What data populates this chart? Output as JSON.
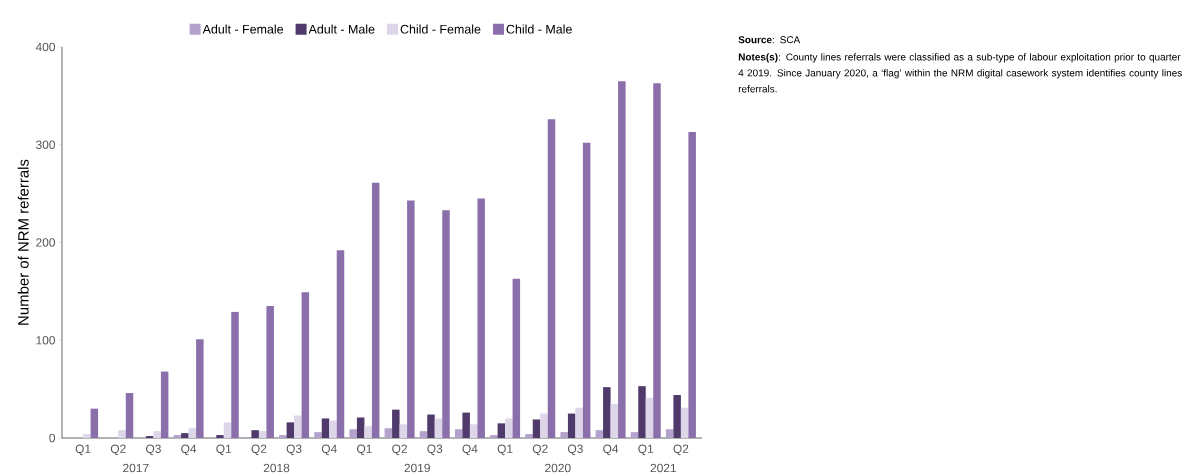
{
  "chart_data": {
    "type": "bar",
    "ylabel": "Number of NRM referrals",
    "categories": [
      "Q1",
      "Q2",
      "Q3",
      "Q4",
      "Q1",
      "Q2",
      "Q3",
      "Q4",
      "Q1",
      "Q2",
      "Q3",
      "Q4",
      "Q1",
      "Q2",
      "Q3",
      "Q4",
      "Q1",
      "Q2"
    ],
    "series": [
      {
        "name": "Adult - Female",
        "color": "#b3a2cc",
        "values": [
          0,
          0,
          0,
          3,
          0,
          1,
          3,
          6,
          9,
          10,
          7,
          9,
          3,
          4,
          6,
          8,
          6,
          9
        ]
      },
      {
        "name": "Adult - Male",
        "color": "#4f3a6b",
        "values": [
          0,
          0,
          2,
          5,
          3,
          8,
          16,
          20,
          21,
          29,
          24,
          26,
          15,
          19,
          25,
          52,
          53,
          44
        ]
      },
      {
        "name": "Child - Female",
        "color": "#ddd5e8",
        "values": [
          4,
          8,
          7,
          10,
          16,
          7,
          23,
          18,
          12,
          14,
          20,
          14,
          20,
          25,
          31,
          35,
          41,
          31
        ]
      },
      {
        "name": "Child - Male",
        "color": "#8a6fab",
        "values": [
          30,
          46,
          68,
          101,
          129,
          135,
          149,
          192,
          261,
          243,
          233,
          245,
          163,
          326,
          302,
          365,
          363,
          313
        ]
      }
    ],
    "ylim": [
      0,
      400
    ],
    "yticks": [
      0,
      100,
      200,
      300,
      400
    ],
    "grid": false,
    "legend": "top",
    "annotations": [
      "2017",
      "2018",
      "2019",
      "2020",
      "2021",
      "**Source**: SCA",
      "**Notes(s)**: County lines referrals were classified as a sub-type of labour exploitation prior to quarter 4 2019. Since January 2020, a ‘flag’ within the NRM digital casework system identifies county lines referrals."
    ]
  }
}
